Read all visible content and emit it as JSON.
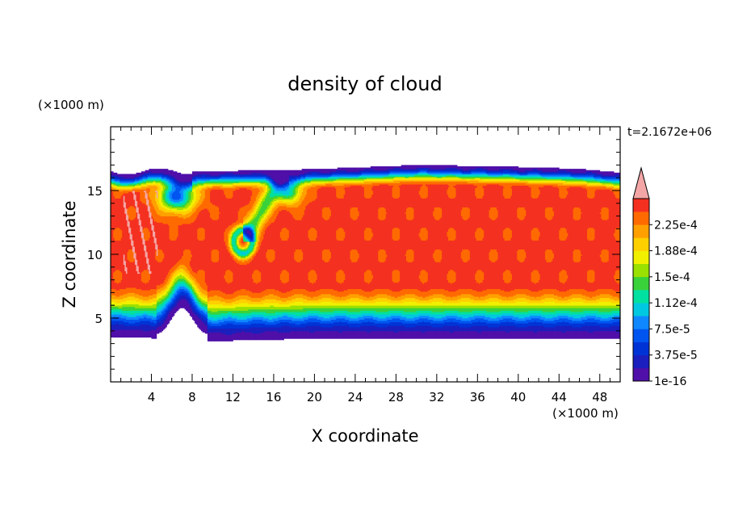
{
  "chart_data": {
    "type": "heatmap",
    "title": "density of cloud",
    "xlabel": "X coordinate",
    "ylabel": "Z coordinate",
    "x_unit": "(×1000 m)",
    "y_unit": "(×1000 m)",
    "time_label": "t=2.1672e+06",
    "xlim": [
      0,
      50
    ],
    "ylim": [
      0,
      20
    ],
    "x_ticks": [
      4,
      8,
      12,
      16,
      20,
      24,
      28,
      32,
      36,
      40,
      44,
      48
    ],
    "y_ticks": [
      5,
      10,
      15
    ],
    "colorbar": {
      "levels": [
        1e-16,
        1.875e-05,
        3.75e-05,
        5.625e-05,
        7.5e-05,
        9.375e-05,
        0.0001125,
        0.00013125,
        0.00015,
        0.00016875,
        0.0001875,
        0.00020625,
        0.000225,
        0.00024375
      ],
      "labels": [
        "1e-16",
        "3.75e-5",
        "7.5e-5",
        "1.12e-4",
        "1.5e-4",
        "1.88e-4",
        "2.25e-4"
      ],
      "colors": [
        "#4f0fa8",
        "#1a1fbd",
        "#0033d6",
        "#0055f0",
        "#0f88ff",
        "#00c8e0",
        "#00e0a0",
        "#3ad23a",
        "#9ae000",
        "#f0f000",
        "#ffd000",
        "#ffa000",
        "#ff6a00",
        "#f43020"
      ],
      "overflow_color": "#f4a6a6",
      "extend": "max"
    },
    "cloud_field": {
      "description_units": "x and z in ×1000 m",
      "top_z": [
        [
          0,
          16.5
        ],
        [
          8,
          16.5
        ],
        [
          17,
          16.6
        ],
        [
          24,
          16.8
        ],
        [
          30,
          17.0
        ],
        [
          38,
          16.9
        ],
        [
          46,
          16.7
        ],
        [
          50,
          16.4
        ]
      ],
      "base_z": [
        [
          0,
          3.5
        ],
        [
          8,
          3.4
        ],
        [
          10,
          3.2
        ],
        [
          14,
          3.3
        ],
        [
          20,
          3.4
        ],
        [
          30,
          3.4
        ],
        [
          40,
          3.4
        ],
        [
          50,
          3.4
        ]
      ],
      "core_range_z": [
        7.5,
        14.5
      ],
      "rotor_center": [
        13.0,
        11.0
      ]
    }
  }
}
